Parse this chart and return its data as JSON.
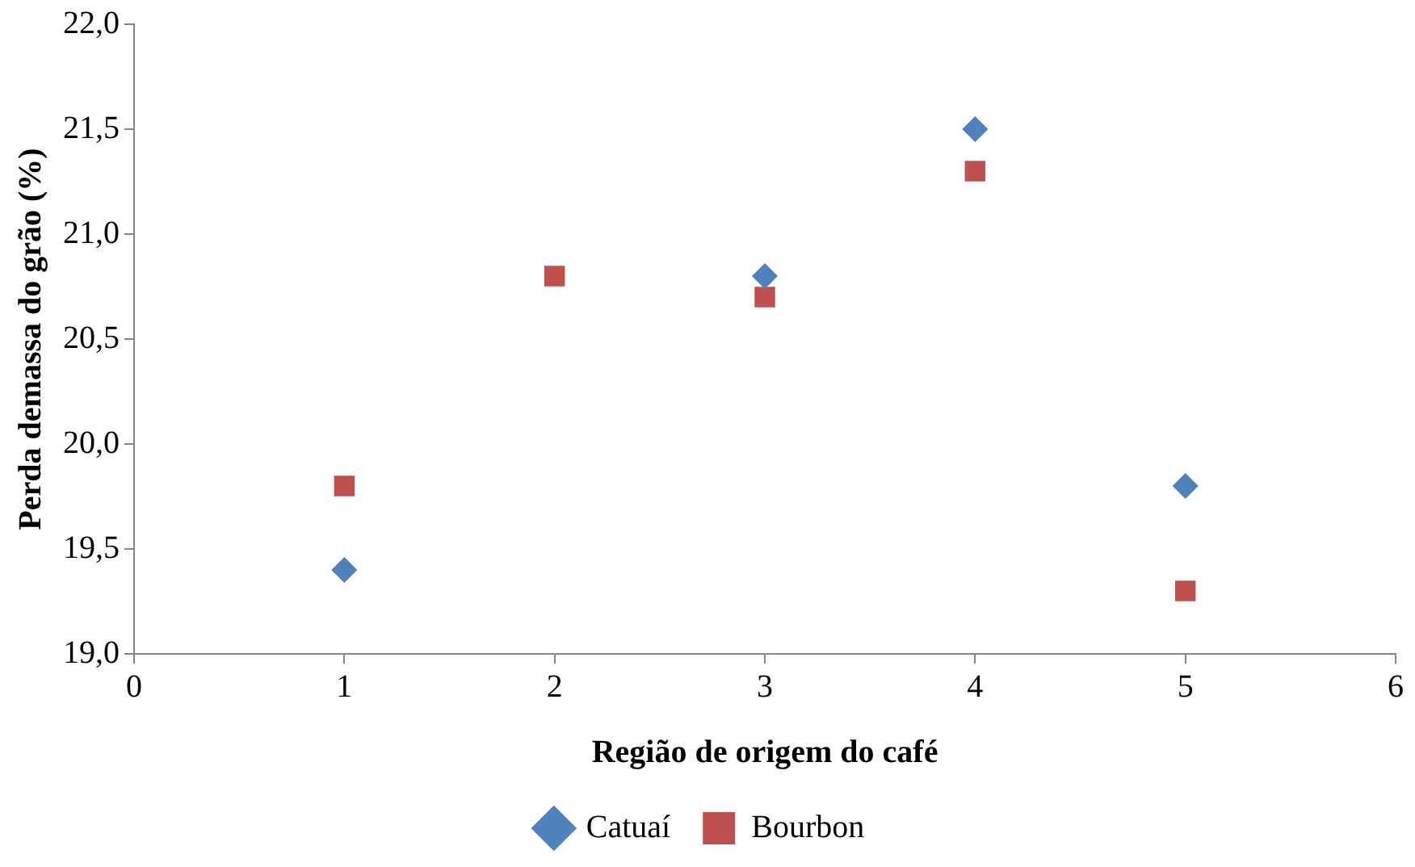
{
  "chart_data": {
    "type": "scatter",
    "xlabel": "Região de origem do café",
    "ylabel": "Perda demassa do grão (%)",
    "x": [
      1,
      2,
      3,
      4,
      5
    ],
    "series": [
      {
        "name": "Catuaí",
        "color": "#4f81bd",
        "marker": "diamond",
        "values": [
          19.4,
          null,
          20.8,
          21.5,
          19.8
        ]
      },
      {
        "name": "Bourbon",
        "color": "#c0504d",
        "marker": "square",
        "values": [
          19.8,
          20.8,
          20.7,
          21.3,
          19.3
        ]
      }
    ],
    "xlim": [
      0,
      6
    ],
    "xticks": [
      0,
      1,
      2,
      3,
      4,
      5,
      6
    ],
    "ylim": [
      19,
      22
    ],
    "yticks": [
      {
        "value": 19,
        "label": "19,0"
      },
      {
        "value": 19.5,
        "label": "19,5"
      },
      {
        "value": 20,
        "label": "20,0"
      },
      {
        "value": 20.5,
        "label": "20,5"
      },
      {
        "value": 21,
        "label": "21,0"
      },
      {
        "value": 21.5,
        "label": "21,5"
      },
      {
        "value": 22,
        "label": "22,0"
      }
    ],
    "grid": false,
    "legend": "bottom"
  }
}
